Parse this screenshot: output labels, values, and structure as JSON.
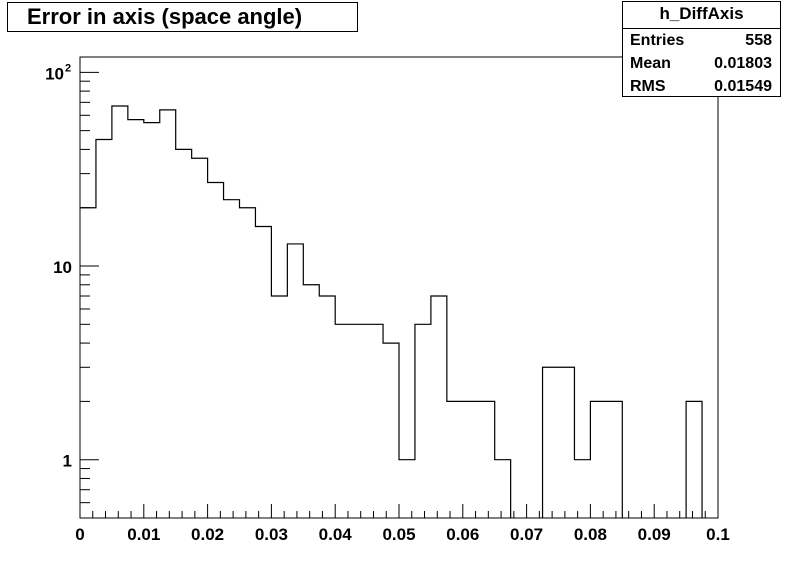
{
  "chart_data": {
    "type": "histogram",
    "title": "Error in axis (space angle)",
    "xlabel": "",
    "ylabel": "",
    "xlim": [
      0,
      0.1
    ],
    "ylim": [
      0.5,
      120
    ],
    "yscale": "log",
    "grid": false,
    "bin_width": 0.0025,
    "bin_edges_start": 0,
    "values": [
      20,
      45,
      67,
      57,
      55,
      64,
      40,
      36,
      27,
      22,
      20,
      16,
      7,
      13,
      8,
      7,
      5,
      5,
      5,
      4,
      1,
      5,
      7,
      2,
      2,
      2,
      1,
      0,
      0,
      3,
      3,
      1,
      2,
      2,
      0,
      0,
      0,
      0,
      2,
      0
    ],
    "x_ticks": [
      "0",
      "0.01",
      "0.02",
      "0.03",
      "0.04",
      "0.05",
      "0.06",
      "0.07",
      "0.08",
      "0.09",
      "0.1"
    ],
    "y_ticks": [
      {
        "value": 100,
        "base": "10",
        "exp": "2"
      },
      {
        "value": 10,
        "label": "10"
      },
      {
        "value": 1,
        "label": "1"
      }
    ]
  },
  "stats_box": {
    "name": "h_DiffAxis",
    "rows": [
      {
        "key": "Entries",
        "value": "558"
      },
      {
        "key": "Mean",
        "value": "0.01803"
      },
      {
        "key": "RMS",
        "value": "0.01549"
      }
    ]
  }
}
